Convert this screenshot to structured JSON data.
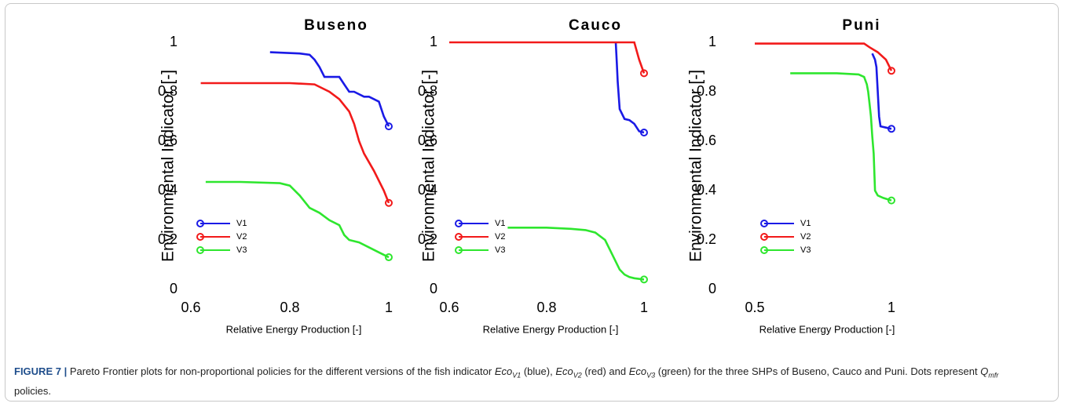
{
  "chart_data": [
    {
      "type": "line",
      "title": "Buseno",
      "xlabel": "Relative Energy Production [-]",
      "ylabel": "Environmental Indicator [-]",
      "xlim": [
        0.6,
        1
      ],
      "xticks": [
        0.6,
        0.8,
        1
      ],
      "ylim": [
        0,
        1
      ],
      "yticks": [
        0,
        0.2,
        0.4,
        0.6,
        0.8,
        1
      ],
      "legend": "lower left",
      "series": [
        {
          "name": "V1",
          "color": "#1a1ae6",
          "x": [
            0.76,
            0.82,
            0.84,
            0.85,
            0.86,
            0.87,
            0.88,
            0.9,
            0.91,
            0.92,
            0.93,
            0.95,
            0.96,
            0.97,
            0.98,
            0.99,
            1.0
          ],
          "values": [
            0.96,
            0.955,
            0.95,
            0.93,
            0.9,
            0.86,
            0.86,
            0.86,
            0.83,
            0.8,
            0.8,
            0.78,
            0.78,
            0.77,
            0.76,
            0.7,
            0.66
          ]
        },
        {
          "name": "V2",
          "color": "#f21a1a",
          "x": [
            0.62,
            0.7,
            0.8,
            0.85,
            0.88,
            0.9,
            0.92,
            0.93,
            0.94,
            0.95,
            0.97,
            0.99,
            1.0
          ],
          "values": [
            0.835,
            0.835,
            0.835,
            0.83,
            0.8,
            0.77,
            0.72,
            0.67,
            0.6,
            0.55,
            0.48,
            0.4,
            0.35
          ]
        },
        {
          "name": "V3",
          "color": "#2ee62e",
          "x": [
            0.63,
            0.7,
            0.78,
            0.8,
            0.82,
            0.84,
            0.86,
            0.88,
            0.9,
            0.91,
            0.92,
            0.94,
            0.96,
            0.98,
            1.0
          ],
          "values": [
            0.435,
            0.435,
            0.43,
            0.42,
            0.38,
            0.33,
            0.31,
            0.28,
            0.26,
            0.22,
            0.2,
            0.19,
            0.17,
            0.15,
            0.13
          ]
        }
      ]
    },
    {
      "type": "line",
      "title": "Cauco",
      "xlabel": "Relative Energy Production [-]",
      "ylabel": "Environmental Indicator [-]",
      "xlim": [
        0.6,
        1
      ],
      "xticks": [
        0.6,
        0.8,
        1
      ],
      "ylim": [
        0,
        1
      ],
      "yticks": [
        0,
        0.2,
        0.4,
        0.6,
        0.8,
        1
      ],
      "legend": "lower left",
      "series": [
        {
          "name": "V1",
          "color": "#1a1ae6",
          "x": [
            0.942,
            0.944,
            0.946,
            0.95,
            0.96,
            0.97,
            0.98,
            0.99,
            1.0
          ],
          "values": [
            1.0,
            0.92,
            0.84,
            0.73,
            0.69,
            0.685,
            0.67,
            0.64,
            0.635
          ]
        },
        {
          "name": "V2",
          "color": "#f21a1a",
          "x": [
            0.6,
            0.98,
            0.99,
            1.0
          ],
          "values": [
            1,
            1,
            0.93,
            0.875
          ]
        },
        {
          "name": "V3",
          "color": "#2ee62e",
          "x": [
            0.72,
            0.8,
            0.85,
            0.88,
            0.9,
            0.92,
            0.93,
            0.94,
            0.95,
            0.96,
            0.97,
            0.98,
            1.0
          ],
          "values": [
            0.25,
            0.25,
            0.245,
            0.24,
            0.23,
            0.2,
            0.16,
            0.12,
            0.08,
            0.06,
            0.05,
            0.045,
            0.04
          ]
        }
      ]
    },
    {
      "type": "line",
      "title": "Puni",
      "xlabel": "Relative Energy Production [-]",
      "ylabel": "Environmental Indicator [-]",
      "xlim": [
        0.5,
        1
      ],
      "xticks": [
        0.5,
        1
      ],
      "ylim": [
        0,
        1
      ],
      "yticks": [
        0,
        0.2,
        0.4,
        0.6,
        0.8,
        1
      ],
      "legend": "lower left",
      "series": [
        {
          "name": "V1",
          "color": "#1a1ae6",
          "x": [
            0.93,
            0.94,
            0.945,
            0.95,
            0.955,
            0.96,
            0.98,
            1.0
          ],
          "values": [
            0.955,
            0.93,
            0.9,
            0.8,
            0.7,
            0.66,
            0.655,
            0.65
          ]
        },
        {
          "name": "V2",
          "color": "#f21a1a",
          "x": [
            0.5,
            0.9,
            0.92,
            0.95,
            0.98,
            1.0
          ],
          "values": [
            0.995,
            0.995,
            0.98,
            0.96,
            0.93,
            0.885
          ]
        },
        {
          "name": "V3",
          "color": "#2ee62e",
          "x": [
            0.63,
            0.8,
            0.88,
            0.9,
            0.91,
            0.915,
            0.92,
            0.925,
            0.93,
            0.935,
            0.94,
            0.95,
            0.97,
            1.0
          ],
          "values": [
            0.875,
            0.875,
            0.87,
            0.86,
            0.83,
            0.8,
            0.75,
            0.7,
            0.62,
            0.55,
            0.4,
            0.38,
            0.37,
            0.36
          ]
        }
      ]
    }
  ],
  "caption": {
    "label": "FIGURE 7 |",
    "parts": [
      " Pareto Frontier plots for non-proportional policies for the different versions of the fish indicator ",
      "Eco",
      "V1",
      " (blue), ",
      "Eco",
      "V2",
      " (red) and ",
      "Eco",
      "V3",
      " (green) for the three SHPs of Buseno, Cauco and Puni. Dots represent ",
      "Q",
      "mfr",
      " policies."
    ]
  }
}
